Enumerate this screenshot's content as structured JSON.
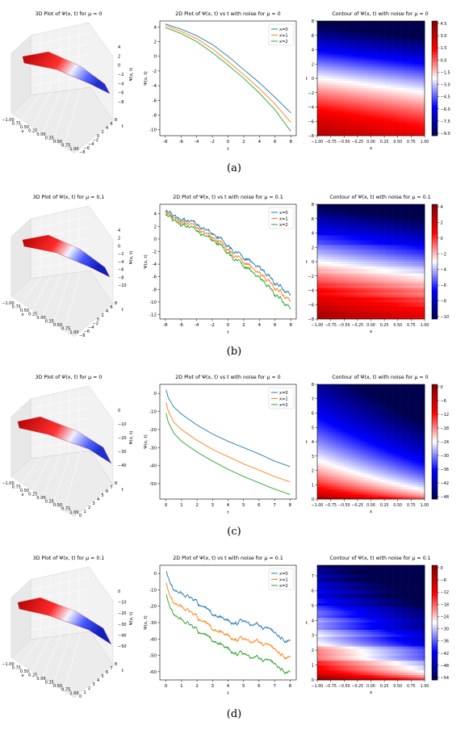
{
  "captions": [
    "(a)",
    "(b)",
    "(c)",
    "(d)"
  ],
  "chart_data": [
    {
      "type": "surface",
      "title": "3D Plot of Ψ(x, t) for μ = 0",
      "xlabel": "x",
      "ylabel": "t",
      "zlabel": "Ψ(x, t)",
      "xticks": [
        "−1.00",
        "0.75",
        "0.50",
        "0.25",
        "0.00",
        "0.25",
        "0.50",
        "0.75",
        "1.00"
      ],
      "yticks": [
        "−8",
        "−6",
        "−4",
        "−2",
        "0",
        "2",
        "4",
        "6",
        "8"
      ],
      "zticks": [
        "4",
        "2",
        "0",
        "−2",
        "−4",
        "−6",
        "−8"
      ],
      "zlim": [
        -9,
        4.5
      ]
    },
    {
      "type": "line",
      "title": "2D Plot of Ψ(x, t) vs t with noise for μ = 0",
      "xlabel": "t",
      "ylabel": "Ψ(x, t)",
      "xlim": [
        -8.7,
        8.7
      ],
      "ylim": [
        -10.8,
        4.8
      ],
      "xticks": [
        -8,
        -6,
        -4,
        -2,
        0,
        2,
        4,
        6,
        8
      ],
      "yticks": [
        4,
        2,
        0,
        -2,
        -4,
        -6,
        -8,
        -10
      ],
      "legend": "top-right",
      "noise": 0,
      "x": [
        -8,
        -6,
        -4,
        -2,
        0,
        2,
        4,
        6,
        8
      ],
      "series": [
        {
          "name": "x=0",
          "color": "#1f77b4",
          "values": [
            4.4,
            3.7,
            2.8,
            1.6,
            0.0,
            -1.8,
            -3.6,
            -5.6,
            -7.7
          ]
        },
        {
          "name": "x=1",
          "color": "#ff7f0e",
          "values": [
            4.2,
            3.4,
            2.4,
            1.0,
            -0.7,
            -2.5,
            -4.4,
            -6.5,
            -9.0
          ]
        },
        {
          "name": "x=2",
          "color": "#2ca02c",
          "values": [
            3.9,
            3.1,
            2.0,
            0.5,
            -1.2,
            -3.0,
            -5.0,
            -7.3,
            -10.2
          ]
        }
      ]
    },
    {
      "type": "heatmap",
      "title": "Contour of Ψ(x, t) with noise for μ = 0",
      "xlabel": "x",
      "ylabel": "t",
      "xticks": [
        "−1.00",
        "−0.75",
        "−0.50",
        "−0.25",
        "0.00",
        "0.25",
        "0.50",
        "0.75",
        "1.00"
      ],
      "yticks": [
        "8",
        "6",
        "4",
        "2",
        "0",
        "−2",
        "−4",
        "−6",
        "−8"
      ],
      "colorbar_ticks": [
        "4.5",
        "3.0",
        "1.5",
        "0.0",
        "−1.5",
        "−3.0",
        "−4.5",
        "−6.0",
        "−7.5",
        "−9.0"
      ],
      "colorbar_range": [
        -9.0,
        4.5
      ],
      "colormap": "seismic"
    },
    {
      "type": "surface",
      "title": "3D Plot of Ψ(x, t) for μ = 0.1",
      "xlabel": "x",
      "ylabel": "t",
      "zlabel": "Ψ(x, t)",
      "xticks": [
        "−1.00",
        "0.75",
        "0.50",
        "0.25",
        "0.00",
        "0.25",
        "0.50",
        "0.75",
        "1.00"
      ],
      "yticks": [
        "−8",
        "−6",
        "−4",
        "−2",
        "0",
        "2",
        "4",
        "6",
        "8"
      ],
      "zticks": [
        "4",
        "2",
        "0",
        "−2",
        "−4",
        "−6",
        "−8",
        "−10"
      ],
      "zlim": [
        -11,
        5
      ]
    },
    {
      "type": "line",
      "title": "2D Plot of Ψ(x, t) vs t with noise for μ = 0.1",
      "xlabel": "t",
      "ylabel": "Ψ(x, t)",
      "xlim": [
        -8.7,
        8.7
      ],
      "ylim": [
        -12.7,
        5.5
      ],
      "xticks": [
        -8,
        -6,
        -4,
        -2,
        0,
        2,
        4,
        6,
        8
      ],
      "yticks": [
        4,
        2,
        0,
        -2,
        -4,
        -6,
        -8,
        -10,
        -12
      ],
      "legend": "top-right",
      "noise": 0.45,
      "x": [
        -8,
        -6,
        -4,
        -2,
        0,
        2,
        4,
        6,
        8
      ],
      "series": [
        {
          "name": "x=0",
          "color": "#1f77b4",
          "values": [
            4.7,
            3.0,
            2.4,
            1.2,
            -1.2,
            -2.8,
            -4.8,
            -6.8,
            -8.8
          ]
        },
        {
          "name": "x=1",
          "color": "#ff7f0e",
          "values": [
            4.4,
            2.6,
            1.9,
            0.6,
            -1.8,
            -3.5,
            -5.7,
            -7.6,
            -9.8
          ]
        },
        {
          "name": "x=2",
          "color": "#2ca02c",
          "values": [
            4.1,
            2.2,
            1.4,
            0.2,
            -2.3,
            -4.1,
            -6.4,
            -8.6,
            -11.0
          ]
        }
      ]
    },
    {
      "type": "heatmap",
      "title": "Contour of Ψ(x, t) with noise for μ = 0.1",
      "xlabel": "x",
      "ylabel": "t",
      "xticks": [
        "−1.00",
        "−0.75",
        "−0.50",
        "−0.25",
        "0.00",
        "0.25",
        "0.50",
        "0.75",
        "1.00"
      ],
      "yticks": [
        "8",
        "6",
        "4",
        "2",
        "0",
        "−2",
        "−4",
        "−6",
        "−8"
      ],
      "colorbar_ticks": [
        "4",
        "2",
        "0",
        "−2",
        "−4",
        "−6",
        "−8",
        "−10"
      ],
      "colorbar_range": [
        -10.5,
        5.5
      ],
      "colormap": "seismic"
    },
    {
      "type": "surface",
      "title": "3D Plot of Ψ(x, t) for μ = 0",
      "xlabel": "x",
      "ylabel": "t",
      "zlabel": "Ψ(x, t)",
      "xticks": [
        "−1.00",
        "0.75",
        "0.50",
        "0.25",
        "0.00",
        "0.25",
        "0.50",
        "0.75",
        "1.00"
      ],
      "yticks": [
        "0",
        "1",
        "2",
        "3",
        "4",
        "5",
        "6",
        "7",
        "8"
      ],
      "zticks": [
        "0",
        "−10",
        "−20",
        "−30",
        "−40"
      ],
      "zlim": [
        -50,
        5
      ]
    },
    {
      "type": "line",
      "title": "2D Plot of Ψ(x, t) vs t with noise for μ = 0",
      "xlabel": "t",
      "ylabel": "Ψ(x, t)",
      "xlim": [
        -0.4,
        8.4
      ],
      "ylim": [
        -58.5,
        5
      ],
      "xticks": [
        0,
        1,
        2,
        3,
        4,
        5,
        6,
        7,
        8
      ],
      "yticks": [
        0,
        -10,
        -20,
        -30,
        -40,
        -50
      ],
      "legend": "top-right",
      "noise": 0,
      "x": [
        0,
        0.15,
        0.5,
        1,
        2,
        3,
        4,
        5,
        6,
        7,
        8
      ],
      "series": [
        {
          "name": "x=0",
          "color": "#1f77b4",
          "values": [
            2,
            -2.5,
            -7.5,
            -11.5,
            -17.5,
            -22.5,
            -26.5,
            -30,
            -33.5,
            -37.5,
            -40.5
          ]
        },
        {
          "name": "x=1",
          "color": "#ff7f0e",
          "values": [
            -5,
            -10,
            -16,
            -20,
            -26,
            -31,
            -35,
            -39,
            -42.5,
            -46,
            -49
          ]
        },
        {
          "name": "x=2",
          "color": "#2ca02c",
          "values": [
            -11,
            -16,
            -22,
            -26.5,
            -32.5,
            -37.5,
            -42,
            -46,
            -49.5,
            -53,
            -56
          ]
        }
      ]
    },
    {
      "type": "heatmap",
      "title": "Contour of Ψ(x, t) with noise for μ = 0",
      "xlabel": "x",
      "ylabel": "t",
      "xticks": [
        "−1.00",
        "−0.75",
        "−0.50",
        "−0.25",
        "0.00",
        "0.25",
        "0.50",
        "0.75",
        "1.00"
      ],
      "yticks": [
        "8",
        "7",
        "6",
        "5",
        "4",
        "3",
        "2",
        "1",
        "0"
      ],
      "colorbar_ticks": [
        "0",
        "−6",
        "−12",
        "−18",
        "−24",
        "−30",
        "−36",
        "−42",
        "−48"
      ],
      "colorbar_range": [
        -50,
        2
      ],
      "colormap": "seismic"
    },
    {
      "type": "surface",
      "title": "3D Plot of Ψ(x, t) for μ = 0.1",
      "xlabel": "x",
      "ylabel": "t",
      "zlabel": "Ψ(x, t)",
      "xticks": [
        "−1.00",
        "0.75",
        "0.50",
        "0.25",
        "0.00",
        "0.25",
        "0.50",
        "0.75",
        "1.00"
      ],
      "yticks": [
        "0",
        "1",
        "2",
        "3",
        "4",
        "5",
        "6",
        "7",
        "8"
      ],
      "zticks": [
        "0",
        "−10",
        "−20",
        "−30",
        "−40",
        "−50"
      ],
      "zlim": [
        -58,
        5
      ]
    },
    {
      "type": "line",
      "title": "2D Plot of Ψ(x, t) vs t with noise for μ = 0.1",
      "xlabel": "t",
      "ylabel": "Ψ(x, t)",
      "xlim": [
        -0.4,
        8.4
      ],
      "ylim": [
        -65,
        5
      ],
      "xticks": [
        0,
        1,
        2,
        3,
        4,
        5,
        6,
        7,
        8
      ],
      "yticks": [
        0,
        -10,
        -20,
        -30,
        -40,
        -50,
        -60
      ],
      "legend": "top-right",
      "noise": 1.6,
      "x": [
        0,
        0.15,
        0.5,
        1,
        2,
        3,
        4,
        5,
        6,
        7,
        8
      ],
      "series": [
        {
          "name": "x=0",
          "color": "#1f77b4",
          "values": [
            2,
            -2,
            -9,
            -12,
            -18,
            -25,
            -29,
            -30,
            -33,
            -36,
            -43
          ]
        },
        {
          "name": "x=1",
          "color": "#ff7f0e",
          "values": [
            -5,
            -10,
            -17,
            -20,
            -27,
            -34,
            -38,
            -41,
            -43,
            -46,
            -53
          ]
        },
        {
          "name": "x=2",
          "color": "#2ca02c",
          "values": [
            -12,
            -17,
            -24,
            -28,
            -35,
            -41,
            -46,
            -50,
            -53,
            -55,
            -62
          ]
        }
      ]
    },
    {
      "type": "heatmap",
      "title": "Contour of Ψ(x, t) with noise for μ = 0.1",
      "xlabel": "x",
      "ylabel": "t",
      "xticks": [
        "−1.00",
        "−0.75",
        "−0.50",
        "−0.25",
        "0.00",
        "0.25",
        "0.50",
        "0.75",
        "1.00"
      ],
      "yticks": [
        "7",
        "6",
        "5",
        "4",
        "3",
        "2",
        "1",
        "0"
      ],
      "colorbar_ticks": [
        "0",
        "−6",
        "−12",
        "−18",
        "−24",
        "−30",
        "−36",
        "−42",
        "−48",
        "−54"
      ],
      "colorbar_range": [
        -57,
        3
      ],
      "colormap": "seismic"
    }
  ]
}
